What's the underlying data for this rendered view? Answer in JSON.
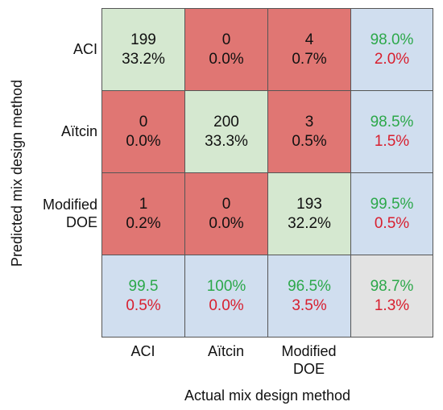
{
  "chart_data": {
    "type": "heatmap",
    "title": "",
    "xlabel": "Actual mix design method",
    "ylabel": "Predicted mix design method",
    "x_categories": [
      "ACI",
      "Aïtcin",
      "Modified\nDOE"
    ],
    "y_categories": [
      "ACI",
      "Aïtcin",
      "Modified\nDOE"
    ],
    "counts": [
      [
        199,
        0,
        4
      ],
      [
        0,
        200,
        3
      ],
      [
        1,
        0,
        193
      ]
    ],
    "cells": [
      [
        {
          "count": "199",
          "percent": "33.2%"
        },
        {
          "count": "0",
          "percent": "0.0%"
        },
        {
          "count": "4",
          "percent": "0.7%"
        }
      ],
      [
        {
          "count": "0",
          "percent": "0.0%"
        },
        {
          "count": "200",
          "percent": "33.3%"
        },
        {
          "count": "3",
          "percent": "0.5%"
        }
      ],
      [
        {
          "count": "1",
          "percent": "0.2%"
        },
        {
          "count": "0",
          "percent": "0.0%"
        },
        {
          "count": "193",
          "percent": "32.2%"
        }
      ]
    ],
    "row_summary": [
      {
        "correct": "98.0%",
        "error": "2.0%"
      },
      {
        "correct": "98.5%",
        "error": "1.5%"
      },
      {
        "correct": "99.5%",
        "error": "0.5%"
      }
    ],
    "col_summary": [
      {
        "correct": "99.5",
        "error": "0.5%"
      },
      {
        "correct": "100%",
        "error": "0.0%"
      },
      {
        "correct": "96.5%",
        "error": "3.5%"
      }
    ],
    "overall": {
      "correct": "98.7%",
      "error": "1.3%"
    },
    "colors": {
      "correct_cell": "#d5e8d0",
      "error_cell": "#e07673",
      "summary_cell": "#d0deef",
      "overall_cell": "#e3e3e3",
      "correct_text": "#2ca84a",
      "error_text": "#d81e2e",
      "count_text": "#111111"
    }
  }
}
